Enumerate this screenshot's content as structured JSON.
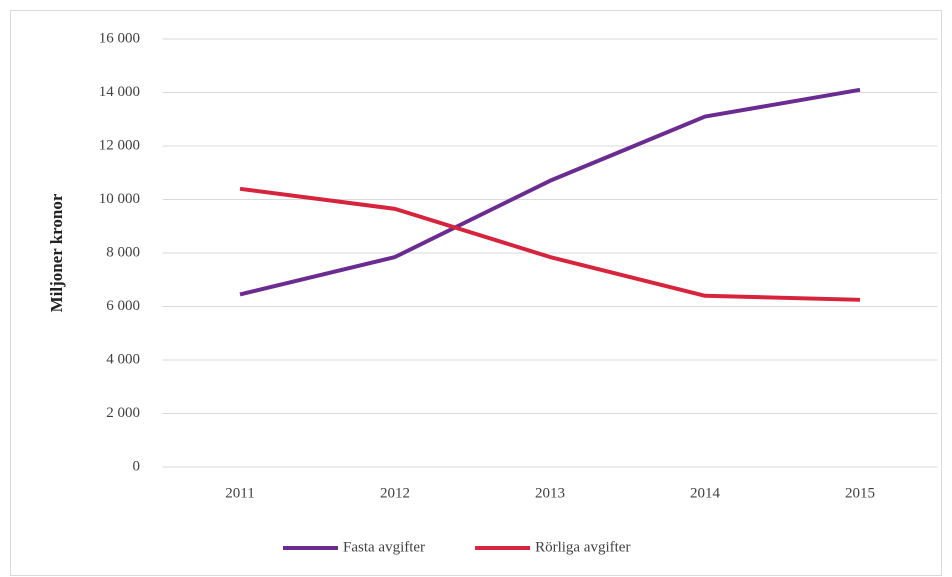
{
  "chart_data": {
    "type": "line",
    "y_label": "Miljoner kronor",
    "categories": [
      "2011",
      "2012",
      "2013",
      "2014",
      "2015"
    ],
    "series": [
      {
        "name": "Fasta avgifter",
        "color": "#6a2c91",
        "values": [
          6450,
          7850,
          10700,
          13100,
          14100
        ]
      },
      {
        "name": "Rörliga avgifter",
        "color": "#d6243d",
        "values": [
          10400,
          9650,
          7850,
          6400,
          6250
        ]
      }
    ],
    "ylim": [
      0,
      16000
    ],
    "yticks": [
      0,
      {
        "value": 2000,
        "label": "2 000"
      },
      {
        "value": 4000,
        "label": "4 000"
      },
      {
        "value": 6000,
        "label": "6 000"
      },
      {
        "value": 8000,
        "label": "8 000"
      },
      {
        "value": 10000,
        "label": "10 000"
      },
      {
        "value": 12000,
        "label": "12 000"
      },
      {
        "value": 14000,
        "label": "14 000"
      },
      {
        "value": 16000,
        "label": "16 000"
      }
    ],
    "grid": true,
    "legend": "bottom"
  }
}
